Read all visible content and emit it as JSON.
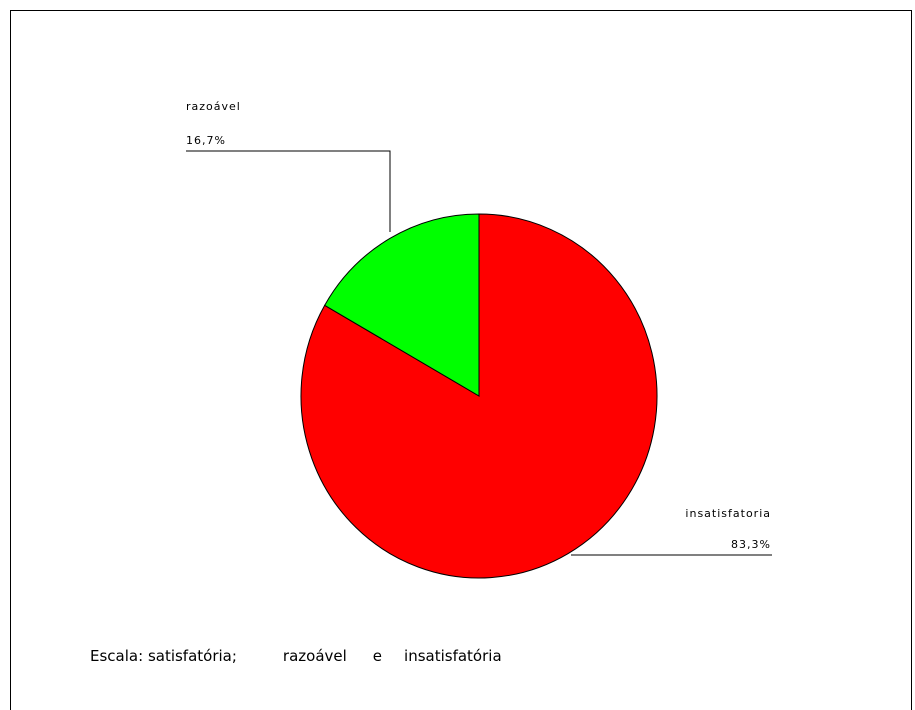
{
  "chart_data": {
    "type": "pie",
    "slices": [
      {
        "label": "insatisfatoria",
        "value": 83.3,
        "value_label": "83,3%",
        "color": "#ff0000"
      },
      {
        "label": "razoável",
        "value": 16.7,
        "value_label": "16,7%",
        "color": "#00ff00"
      }
    ]
  },
  "footer": {
    "prefix": "Escala:",
    "item1": "satisfatória;",
    "item2": "razoável",
    "conj": "e",
    "item3": "insatisfatória"
  }
}
